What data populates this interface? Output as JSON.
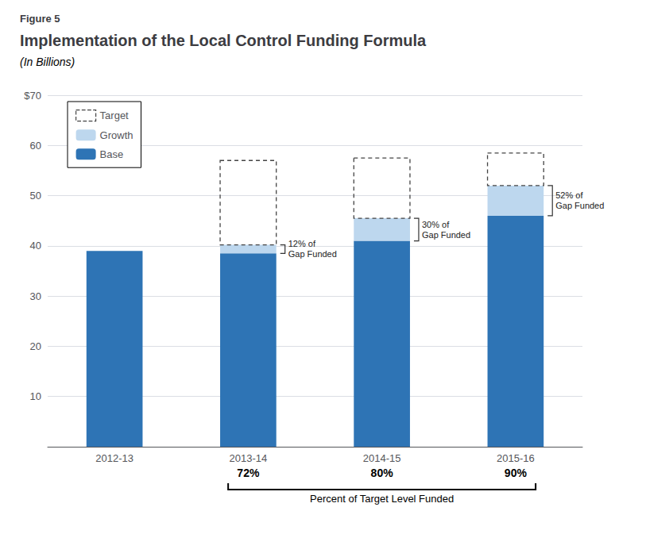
{
  "chart_data": {
    "type": "bar",
    "figure_label": "Figure 5",
    "title": "Implementation of the Local Control Funding Formula",
    "subtitle": "(In Billions)",
    "categories": [
      "2012-13",
      "2013-14",
      "2014-15",
      "2015-16"
    ],
    "stacked": true,
    "series": [
      {
        "name": "Base",
        "color": "#2E74B5",
        "values": [
          39.0,
          38.5,
          41.0,
          46.0
        ]
      },
      {
        "name": "Growth",
        "color": "#BDD7EE",
        "values": [
          0.0,
          1.7,
          4.5,
          6.0
        ]
      },
      {
        "name": "Target",
        "type": "outline",
        "line_style": "dashed",
        "color": "#444444",
        "values": [
          null,
          57.0,
          57.5,
          58.5
        ]
      }
    ],
    "gap_funded": {
      "values": [
        null,
        12,
        30,
        52
      ],
      "value_labels": [
        null,
        "12% of\nGap Funded",
        "30% of\nGap Funded",
        "52% of\nGap Funded"
      ]
    },
    "percent_funded": {
      "label": "Percent of Target Level Funded",
      "values": [
        null,
        72,
        80,
        90
      ],
      "value_labels": [
        null,
        "72%",
        "80%",
        "90%"
      ]
    },
    "ylim": [
      0,
      70
    ],
    "yticks": [
      {
        "value": 0,
        "label": ""
      },
      10,
      20,
      30,
      40,
      50,
      60,
      {
        "value": 70,
        "label": "$70"
      }
    ],
    "grid": true,
    "legend": "upper left"
  }
}
